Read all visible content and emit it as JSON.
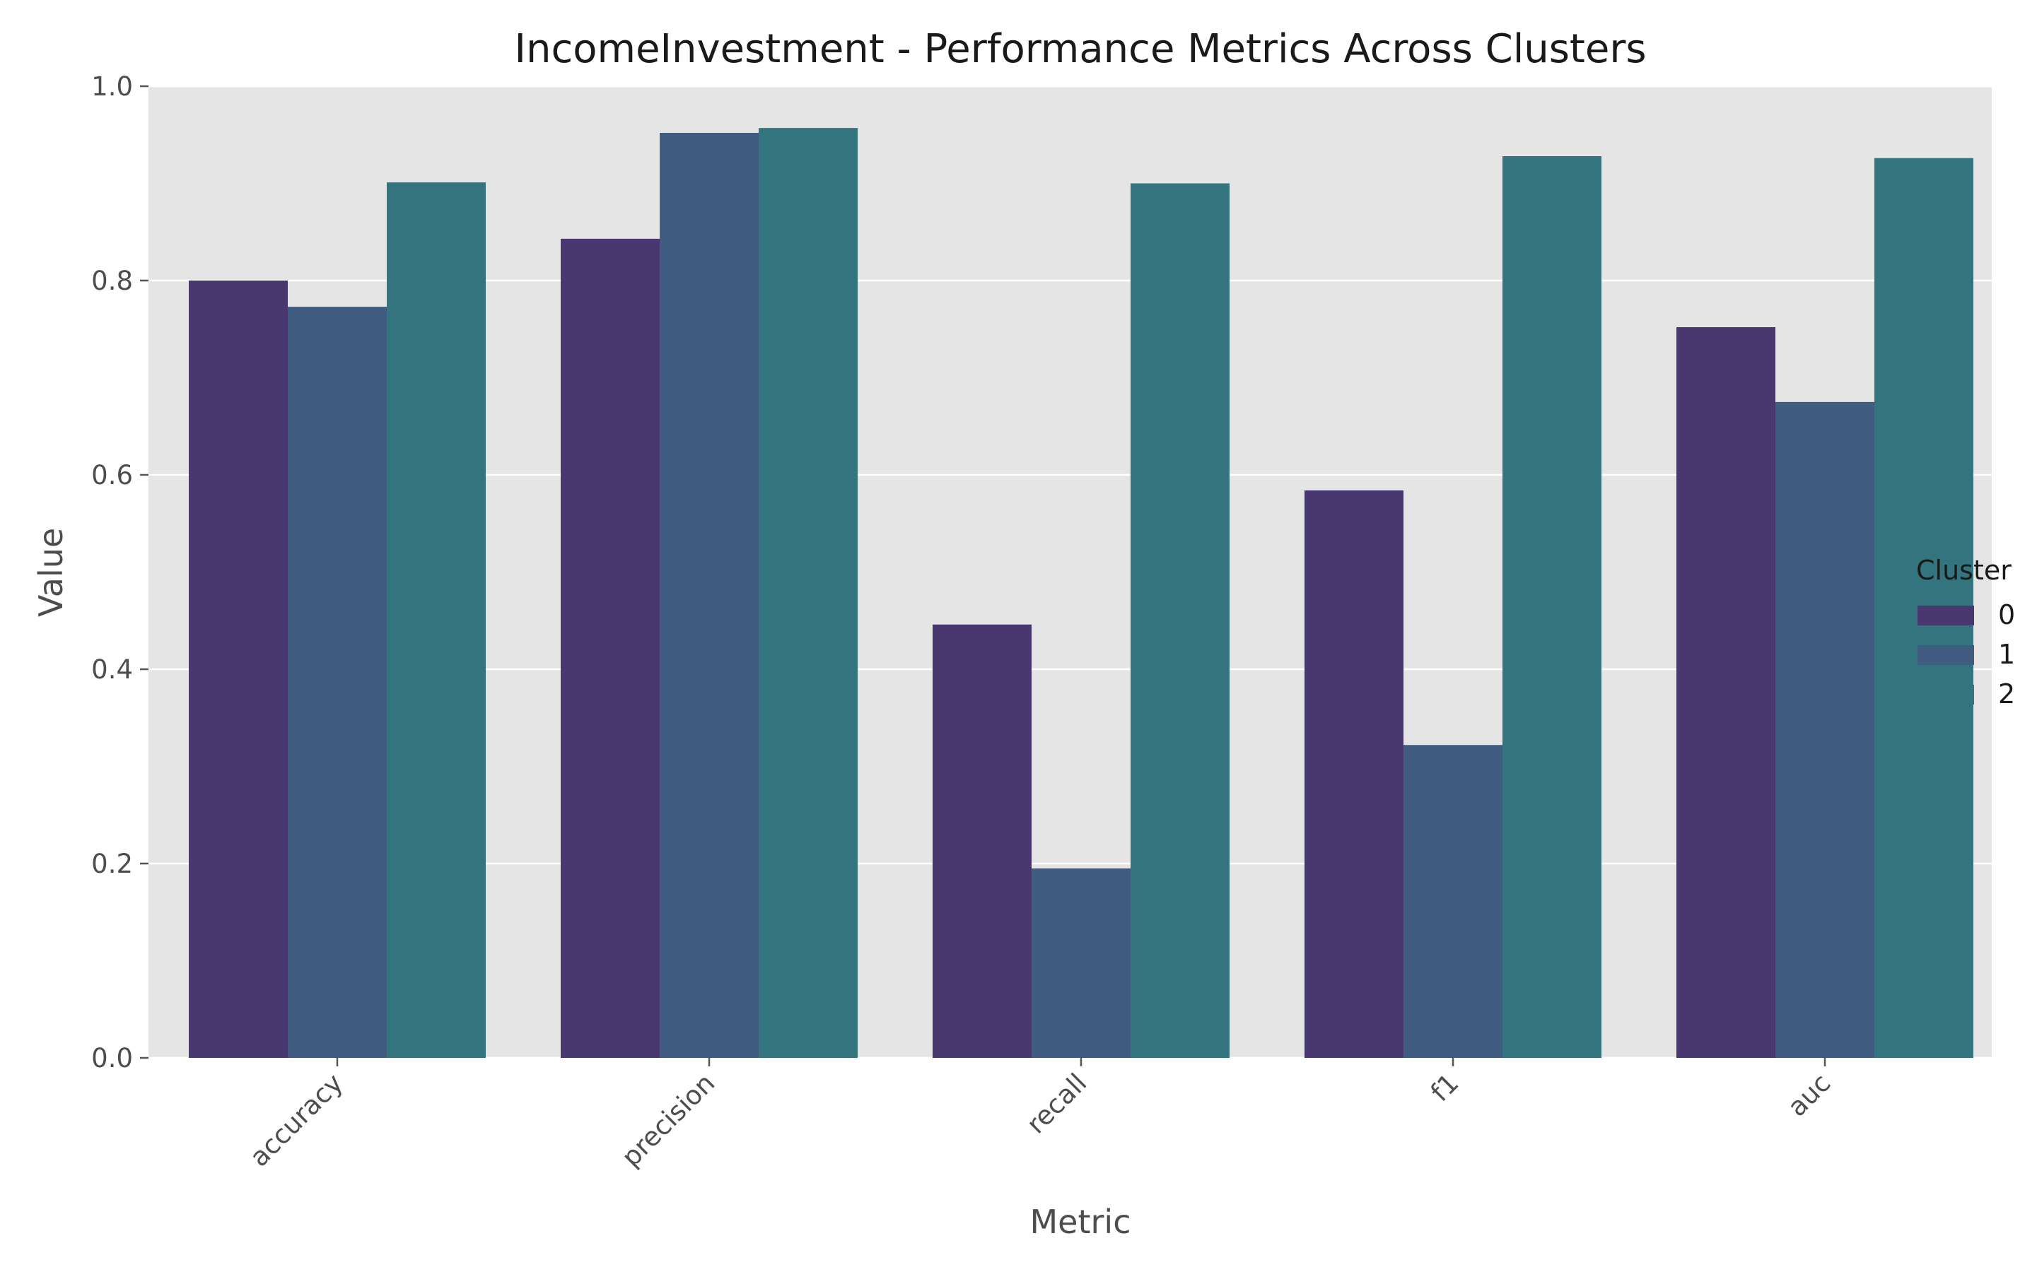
{
  "chart_data": {
    "type": "bar",
    "title": "IncomeInvestment - Performance Metrics Across Clusters",
    "xlabel": "Metric",
    "ylabel": "Value",
    "categories": [
      "accuracy",
      "precision",
      "recall",
      "f1",
      "auc"
    ],
    "ylim": [
      0,
      1.0
    ],
    "yticks": [
      0.0,
      0.2,
      0.4,
      0.6,
      0.8,
      1.0
    ],
    "ytick_labels": [
      "0.0",
      "0.2",
      "0.4",
      "0.6",
      "0.8",
      "1.0"
    ],
    "grid": true,
    "legend": {
      "title": "Cluster",
      "position": "right"
    },
    "series": [
      {
        "name": "0",
        "color": "#48386f",
        "values": [
          0.8,
          0.843,
          0.446,
          0.584,
          0.752
        ]
      },
      {
        "name": "1",
        "color": "#415c81",
        "values": [
          0.773,
          0.952,
          0.195,
          0.322,
          0.675
        ]
      },
      {
        "name": "2",
        "color": "#33747e",
        "values": [
          0.901,
          0.957,
          0.9,
          0.928,
          0.926
        ]
      }
    ],
    "background": "#e5e5e5",
    "grid_color": "#ffffff"
  }
}
